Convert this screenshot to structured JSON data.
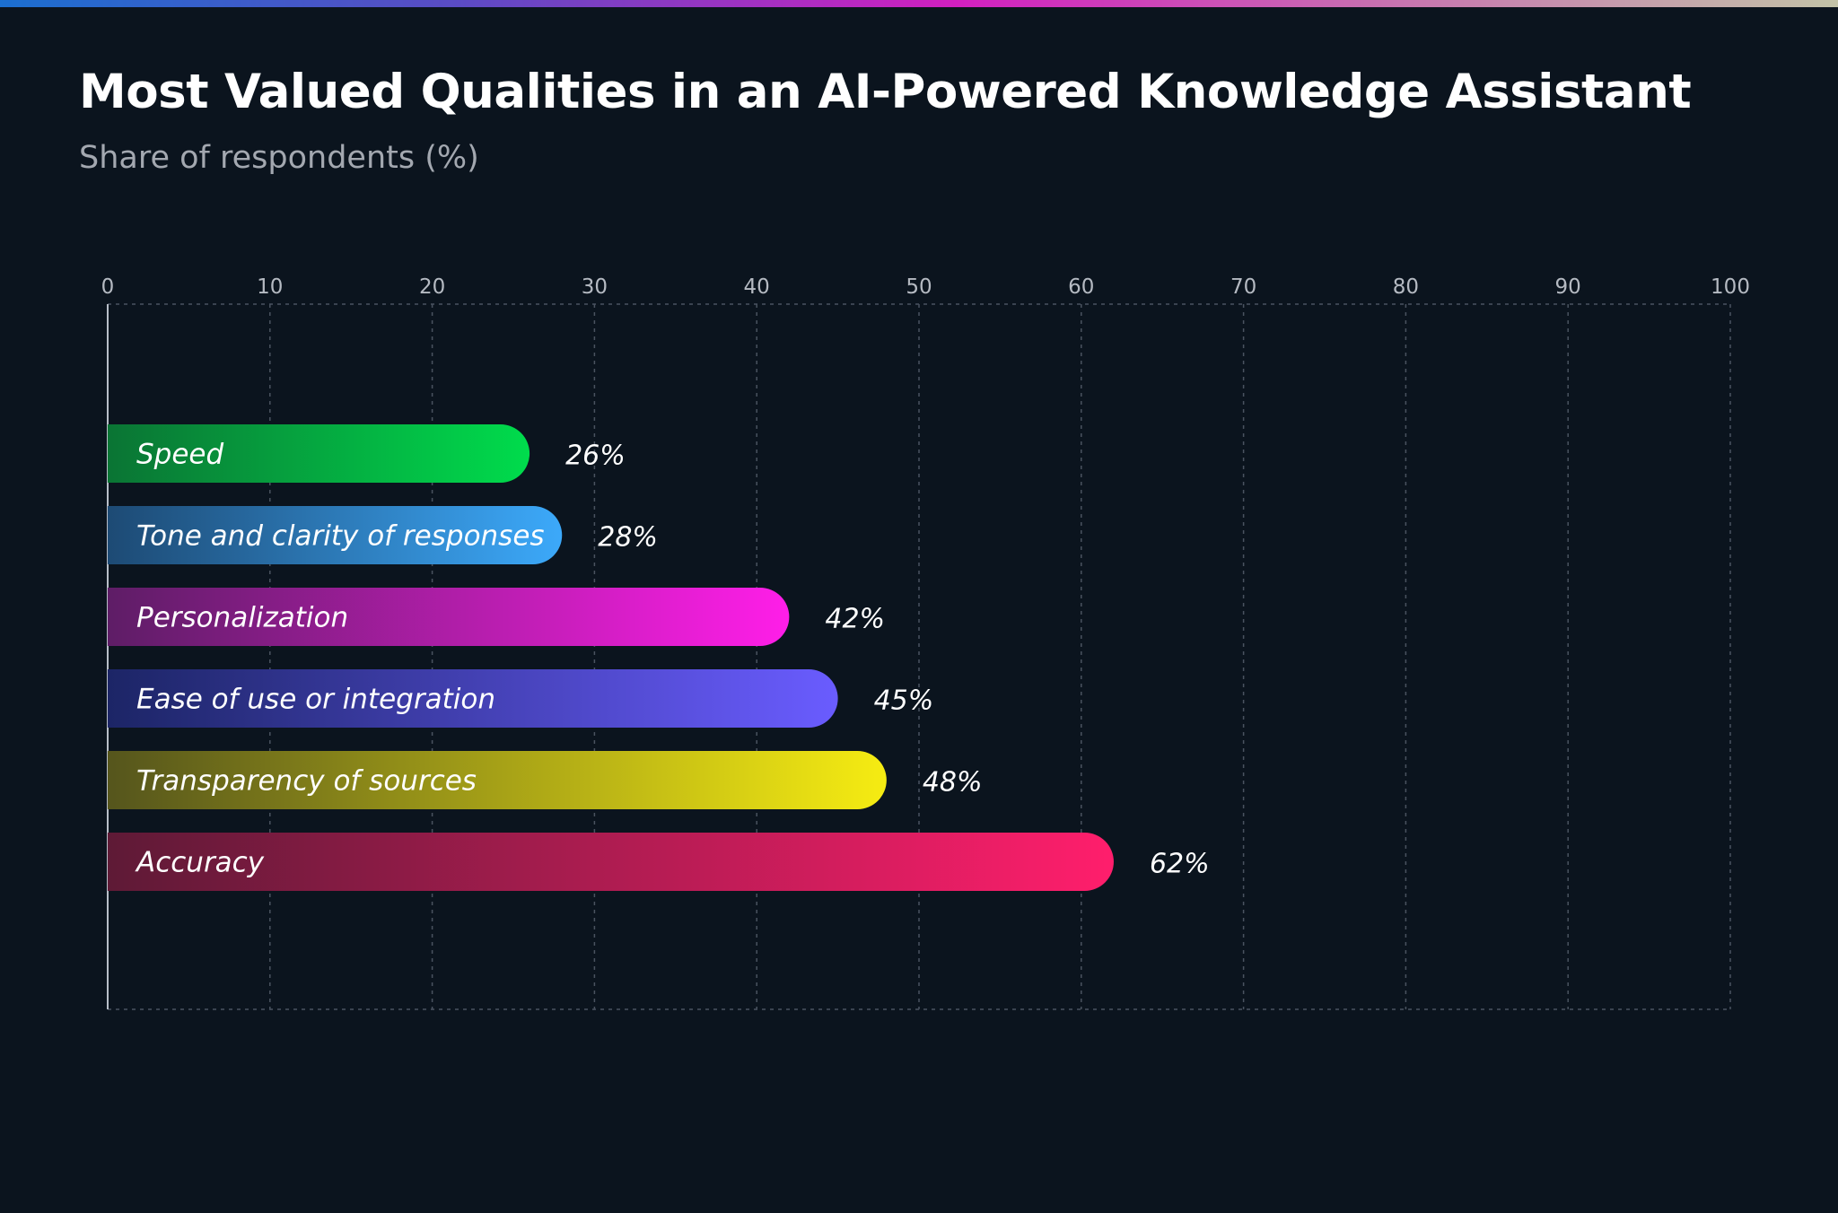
{
  "title": "Most Valued Qualities in an AI-Powered Knowledge Assistant",
  "subtitle": "Share of respondents (%)",
  "chart_data": {
    "type": "bar",
    "orientation": "horizontal",
    "title": "Most Valued Qualities in an AI-Powered Knowledge Assistant",
    "subtitle": "Share of respondents (%)",
    "categories": [
      "Speed",
      "Tone and clarity of responses",
      "Personalization",
      "Ease of use or integration",
      "Transparency of sources",
      "Accuracy"
    ],
    "values": [
      26,
      28,
      42,
      45,
      48,
      62
    ],
    "value_labels": [
      "26%",
      "28%",
      "42%",
      "45%",
      "48%",
      "62%"
    ],
    "colors": [
      [
        "#0a7434",
        "#00dc4c"
      ],
      [
        "#1d4a74",
        "#3ca9fa"
      ],
      [
        "#5e1d66",
        "#ff1ee8"
      ],
      [
        "#1c2566",
        "#6a5cff"
      ],
      [
        "#55551c",
        "#f6ec12"
      ],
      [
        "#5e1a36",
        "#ff1e6c"
      ]
    ],
    "xlim": [
      0,
      100
    ],
    "xticks": [
      0,
      10,
      20,
      30,
      40,
      50,
      60,
      70,
      80,
      90,
      100
    ],
    "xtick_position": "top",
    "grid": true,
    "legend": "none"
  }
}
